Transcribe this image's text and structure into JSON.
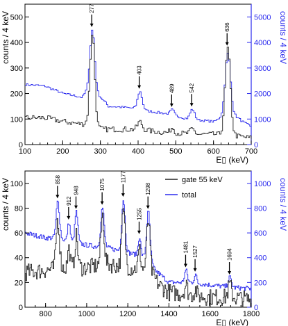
{
  "chart_data": [
    {
      "type": "histogram-step",
      "xlabel": "E▯ (keV)",
      "ylabel_left": "counts / 4 keV",
      "ylabel_right": "counts / 4 keV",
      "xlim": [
        100,
        700
      ],
      "ylim_left": [
        0,
        550
      ],
      "ylim_right": [
        0,
        5500
      ],
      "x_ticks": [
        100,
        200,
        300,
        400,
        500,
        600,
        700
      ],
      "y_ticks_left": [
        0,
        100,
        200,
        300,
        400,
        500
      ],
      "y_ticks_right": [
        0,
        1000,
        2000,
        3000,
        4000,
        5000
      ],
      "colors": {
        "black_series": "#222222",
        "blue_series": "#2a2aee"
      },
      "blue_base": [
        [
          100,
          2350
        ],
        [
          150,
          2300
        ],
        [
          200,
          2000
        ],
        [
          250,
          1850
        ],
        [
          270,
          2300
        ],
        [
          290,
          2000
        ],
        [
          320,
          1500
        ],
        [
          370,
          1450
        ],
        [
          395,
          1400
        ],
        [
          430,
          1300
        ],
        [
          480,
          1200
        ],
        [
          530,
          1000
        ],
        [
          600,
          900
        ],
        [
          640,
          1300
        ],
        [
          680,
          850
        ],
        [
          700,
          700
        ]
      ],
      "black_base": [
        [
          100,
          105
        ],
        [
          150,
          105
        ],
        [
          200,
          90
        ],
        [
          250,
          80
        ],
        [
          270,
          90
        ],
        [
          300,
          60
        ],
        [
          350,
          60
        ],
        [
          400,
          60
        ],
        [
          450,
          50
        ],
        [
          500,
          45
        ],
        [
          550,
          40
        ],
        [
          600,
          40
        ],
        [
          650,
          35
        ],
        [
          700,
          25
        ]
      ],
      "peaks": [
        {
          "label": "277",
          "energy": 277,
          "black_height": 355,
          "blue_height": 2300,
          "width": 6
        },
        {
          "label": "403",
          "energy": 403,
          "black_height": 30,
          "blue_height": 700,
          "width": 6
        },
        {
          "label": "489",
          "energy": 489,
          "black_height": 20,
          "blue_height": 200,
          "width": 5
        },
        {
          "label": "542",
          "energy": 542,
          "black_height": 20,
          "blue_height": 400,
          "width": 6
        },
        {
          "label": "636",
          "energy": 636,
          "black_height": 340,
          "blue_height": 2300,
          "width": 7
        }
      ]
    },
    {
      "type": "histogram-step",
      "xlabel": "E▯ (keV)",
      "ylabel_left": "counts / 4 keV",
      "ylabel_right": "counts / 4 keV",
      "xlim": [
        700,
        1800
      ],
      "ylim_left": [
        0,
        110
      ],
      "ylim_right": [
        0,
        1100
      ],
      "x_ticks": [
        800,
        1000,
        1200,
        1400,
        1600,
        1800
      ],
      "y_ticks_left": [
        0,
        20,
        40,
        60,
        80,
        100
      ],
      "y_ticks_right": [
        0,
        200,
        400,
        600,
        800,
        1000
      ],
      "legend": [
        {
          "name": "gate 55 keV",
          "color": "#222222"
        },
        {
          "name": "total",
          "color": "#2a2aee"
        }
      ],
      "legend_position": "top-right",
      "blue_base": [
        [
          700,
          600
        ],
        [
          800,
          560
        ],
        [
          850,
          560
        ],
        [
          900,
          540
        ],
        [
          1000,
          500
        ],
        [
          1100,
          480
        ],
        [
          1200,
          440
        ],
        [
          1300,
          400
        ],
        [
          1330,
          300
        ],
        [
          1400,
          200
        ],
        [
          1500,
          200
        ],
        [
          1600,
          180
        ],
        [
          1700,
          160
        ],
        [
          1800,
          150
        ]
      ],
      "black_base": [
        [
          700,
          28
        ],
        [
          800,
          30
        ],
        [
          900,
          32
        ],
        [
          1000,
          32
        ],
        [
          1100,
          35
        ],
        [
          1200,
          32
        ],
        [
          1300,
          30
        ],
        [
          1350,
          18
        ],
        [
          1400,
          12
        ],
        [
          1500,
          10
        ],
        [
          1600,
          8
        ],
        [
          1700,
          8
        ],
        [
          1800,
          6
        ]
      ],
      "peaks": [
        {
          "label": "858",
          "energy": 858,
          "black_height": 40,
          "blue_height": 300,
          "width": 8
        },
        {
          "label": "912",
          "energy": 912,
          "black_height": 15,
          "blue_height": 150,
          "width": 6
        },
        {
          "label": "948",
          "energy": 948,
          "black_height": 25,
          "blue_height": 250,
          "width": 7
        },
        {
          "label": "1075",
          "energy": 1075,
          "black_height": 40,
          "blue_height": 320,
          "width": 8
        },
        {
          "label": "1177",
          "energy": 1177,
          "black_height": 45,
          "blue_height": 420,
          "width": 8
        },
        {
          "label": "1255",
          "energy": 1255,
          "black_height": 15,
          "blue_height": 150,
          "width": 6
        },
        {
          "label": "1298",
          "energy": 1298,
          "black_height": 40,
          "blue_height": 370,
          "width": 8
        },
        {
          "label": "1481",
          "energy": 1481,
          "black_height": 8,
          "blue_height": 100,
          "width": 7
        },
        {
          "label": "1527",
          "energy": 1527,
          "black_height": 5,
          "blue_height": 70,
          "width": 6
        },
        {
          "label": "1694",
          "energy": 1694,
          "black_height": 10,
          "blue_height": 80,
          "width": 8
        }
      ]
    }
  ]
}
